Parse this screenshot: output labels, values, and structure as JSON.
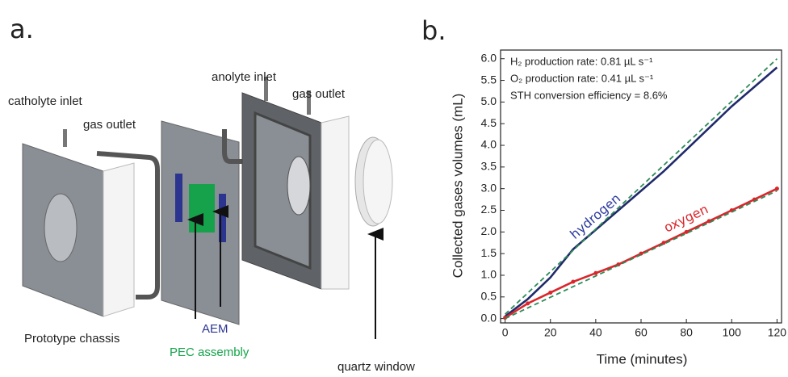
{
  "diagram": {
    "panel_label": "a.",
    "labels": {
      "catholyte_inlet": "catholyte inlet",
      "gas_outlet_left": "gas outlet",
      "anolyte_inlet": "anolyte inlet",
      "gas_outlet_right": "gas outlet",
      "prototype_chassis": "Prototype chassis",
      "aem": "AEM",
      "pec_assembly": "PEC assembly",
      "quartz_window": "quartz window"
    }
  },
  "chart_data": {
    "type": "line",
    "panel_label": "b.",
    "x_label": "Time (minutes)",
    "y_label": "Collected gases volumes (mL)",
    "annotations": [
      "H₂ production rate: 0.81 µL s⁻¹",
      "O₂ production rate: 0.41 µL s⁻¹",
      "STH conversion efficiency = 8.6%"
    ],
    "x": [
      0,
      10,
      20,
      30,
      40,
      50,
      60,
      70,
      80,
      90,
      100,
      110,
      120
    ],
    "xlim": [
      -2,
      122
    ],
    "xticks": [
      0,
      20,
      40,
      60,
      80,
      100,
      120
    ],
    "ylim": [
      -0.1,
      6.2
    ],
    "yticks": [
      {
        "value": 0,
        "label": "0.0"
      },
      {
        "value": 0.5,
        "label": "0.5"
      },
      {
        "value": 1,
        "label": "1.0"
      },
      {
        "value": 1.5,
        "label": "1.5"
      },
      {
        "value": 2,
        "label": "2.0"
      },
      {
        "value": 2.5,
        "label": "2.5"
      },
      {
        "value": 3,
        "label": "3.0"
      },
      {
        "value": 3.5,
        "label": "3.5"
      },
      {
        "value": 4,
        "label": "4.0"
      },
      {
        "value": 4.5,
        "label": "4.5"
      },
      {
        "value": 5,
        "label": "5.0"
      },
      {
        "value": 5.5,
        "label": "5.5"
      },
      {
        "value": 6,
        "label": "6.0"
      }
    ],
    "grid": false,
    "series": [
      {
        "name": "hydrogen",
        "color": "#1f2a6b",
        "label_color": "#2b3a9e",
        "values": [
          0.05,
          0.45,
          0.95,
          1.6,
          2.05,
          2.5,
          2.95,
          3.4,
          3.9,
          4.4,
          4.9,
          5.35,
          5.8
        ]
      },
      {
        "name": "oxygen",
        "color": "#d9262b",
        "label_color": "#d9262b",
        "markers": true,
        "values": [
          0.02,
          0.35,
          0.6,
          0.85,
          1.05,
          1.25,
          1.5,
          1.75,
          2.0,
          2.25,
          2.5,
          2.75,
          3.0
        ]
      },
      {
        "color": "#2e8b57",
        "dash": true,
        "x": [
          0,
          120
        ],
        "values": [
          0.1,
          6.0
        ]
      },
      {
        "color": "#2e8b57",
        "dash": true,
        "x": [
          0,
          120
        ],
        "values": [
          0.0,
          2.95
        ]
      }
    ]
  }
}
